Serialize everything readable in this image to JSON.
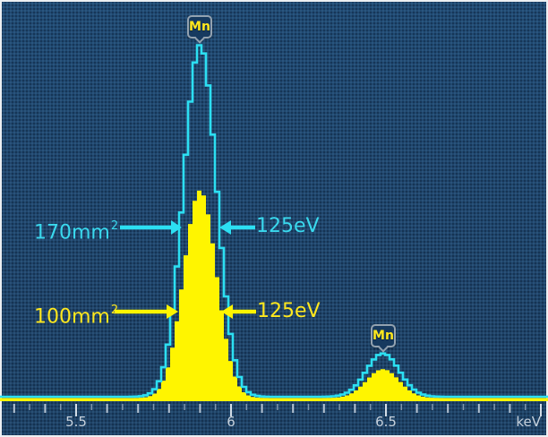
{
  "colors": {
    "background": "#1f4870",
    "series_170_cyan": "#2cdff2",
    "series_100_yellow": "#fff500",
    "annotation_cyan_text": "#3ad9ee",
    "annotation_yellow_text": "#ffe81e",
    "axis_text": "#c6d1dc",
    "badge_border": "#93a2b0",
    "badge_fill": "#173a5f"
  },
  "chart_data": {
    "type": "area",
    "xlabel": "keV",
    "x_axis_unit": "keV",
    "x_range_keV": [
      5.25,
      7.02
    ],
    "tick_step_keV": 0.05,
    "x_ticks": [
      {
        "keV": 5.5,
        "label": "5.5"
      },
      {
        "keV": 6.0,
        "label": "6"
      },
      {
        "keV": 6.5,
        "label": "6.5"
      }
    ],
    "resolution_fwhm_eV": 125,
    "peak_centers_keV": [
      5.9,
      6.49
    ],
    "series": [
      {
        "name": "170mm²",
        "render": "step-line",
        "color": "#2cdff2",
        "peak_rel_heights": [
          1.0,
          0.123
        ]
      },
      {
        "name": "100mm²",
        "render": "step-area",
        "color": "#fff500",
        "peak_rel_heights": [
          0.59,
          0.082
        ]
      }
    ],
    "peak_markers": [
      {
        "label": "Mn",
        "at_keV": 5.9
      },
      {
        "label": "Mn",
        "at_keV": 6.49
      }
    ]
  },
  "annotations": {
    "area_170": {
      "base": "170mm",
      "sup": "2"
    },
    "res_170": "125eV",
    "area_100": {
      "base": "100mm",
      "sup": "2"
    },
    "res_100": "125eV"
  }
}
